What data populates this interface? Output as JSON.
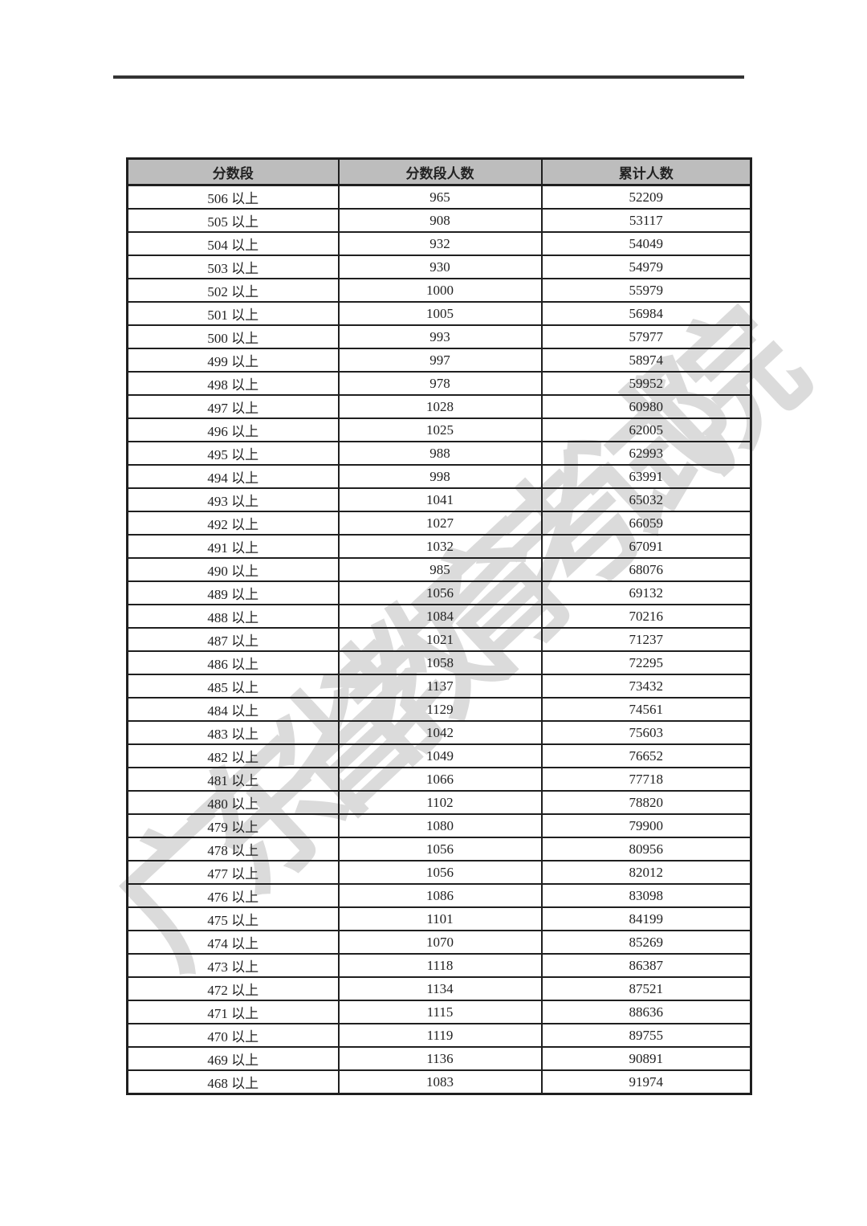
{
  "table": {
    "headers": [
      "分数段",
      "分数段人数",
      "累计人数"
    ],
    "rows": [
      [
        "506 以上",
        "965",
        "52209"
      ],
      [
        "505 以上",
        "908",
        "53117"
      ],
      [
        "504 以上",
        "932",
        "54049"
      ],
      [
        "503 以上",
        "930",
        "54979"
      ],
      [
        "502 以上",
        "1000",
        "55979"
      ],
      [
        "501 以上",
        "1005",
        "56984"
      ],
      [
        "500 以上",
        "993",
        "57977"
      ],
      [
        "499 以上",
        "997",
        "58974"
      ],
      [
        "498 以上",
        "978",
        "59952"
      ],
      [
        "497 以上",
        "1028",
        "60980"
      ],
      [
        "496 以上",
        "1025",
        "62005"
      ],
      [
        "495 以上",
        "988",
        "62993"
      ],
      [
        "494 以上",
        "998",
        "63991"
      ],
      [
        "493 以上",
        "1041",
        "65032"
      ],
      [
        "492 以上",
        "1027",
        "66059"
      ],
      [
        "491 以上",
        "1032",
        "67091"
      ],
      [
        "490 以上",
        "985",
        "68076"
      ],
      [
        "489 以上",
        "1056",
        "69132"
      ],
      [
        "488 以上",
        "1084",
        "70216"
      ],
      [
        "487 以上",
        "1021",
        "71237"
      ],
      [
        "486 以上",
        "1058",
        "72295"
      ],
      [
        "485 以上",
        "1137",
        "73432"
      ],
      [
        "484 以上",
        "1129",
        "74561"
      ],
      [
        "483 以上",
        "1042",
        "75603"
      ],
      [
        "482 以上",
        "1049",
        "76652"
      ],
      [
        "481 以上",
        "1066",
        "77718"
      ],
      [
        "480 以上",
        "1102",
        "78820"
      ],
      [
        "479 以上",
        "1080",
        "79900"
      ],
      [
        "478 以上",
        "1056",
        "80956"
      ],
      [
        "477 以上",
        "1056",
        "82012"
      ],
      [
        "476 以上",
        "1086",
        "83098"
      ],
      [
        "475 以上",
        "1101",
        "84199"
      ],
      [
        "474 以上",
        "1070",
        "85269"
      ],
      [
        "473 以上",
        "1118",
        "86387"
      ],
      [
        "472 以上",
        "1134",
        "87521"
      ],
      [
        "471 以上",
        "1115",
        "88636"
      ],
      [
        "470 以上",
        "1119",
        "89755"
      ],
      [
        "469 以上",
        "1136",
        "90891"
      ],
      [
        "468 以上",
        "1083",
        "91974"
      ]
    ]
  },
  "watermark": {
    "text": "广东省教育考试院"
  },
  "colors": {
    "header_bg": "#bdbdbd",
    "border": "#1f1f1f",
    "text": "#222222",
    "watermark": "#8a8a8a",
    "rule": "#333333",
    "page_bg": "#ffffff"
  }
}
